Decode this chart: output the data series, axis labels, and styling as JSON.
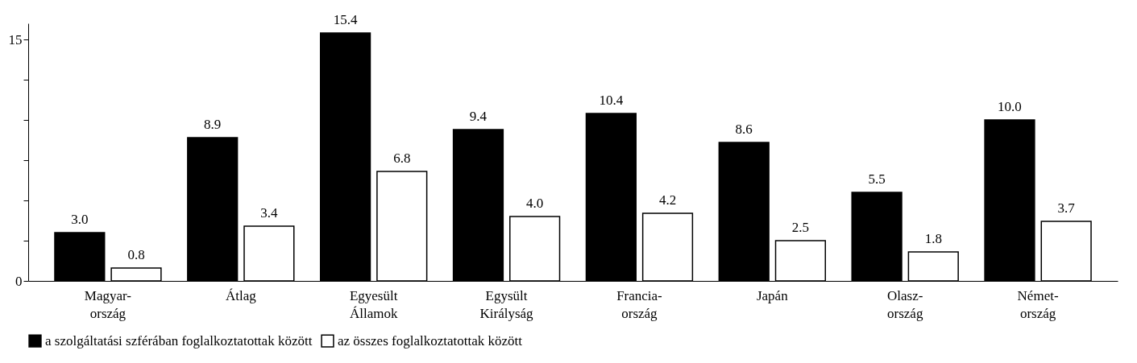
{
  "chart_data": {
    "type": "bar",
    "categories": [
      "Magyar-\nország",
      "Átlag",
      "Egyesült\nÁllamok",
      "Egysült\nKirályság",
      "Francia-\nország",
      "Japán",
      "Olasz-\nország",
      "Német-\nország"
    ],
    "series": [
      {
        "name": "a szolgáltatási szférában foglalkoztatottak között",
        "color": "#000000",
        "values": [
          3.0,
          8.9,
          15.4,
          9.4,
          10.4,
          8.6,
          5.5,
          10.0
        ],
        "value_labels": [
          "3.0",
          "8.9",
          "15.4",
          "9.4",
          "10.4",
          "8.6",
          "5.5",
          "10.0"
        ]
      },
      {
        "name": "az összes foglalkoztatottak között",
        "color": "#ffffff",
        "values": [
          0.8,
          3.4,
          6.8,
          4.0,
          4.2,
          2.5,
          1.8,
          3.7
        ],
        "value_labels": [
          "0.8",
          "3.4",
          "6.8",
          "4.0",
          "4.2",
          "2.5",
          "1.8",
          "3.7"
        ]
      }
    ],
    "ylim": [
      0,
      16
    ],
    "yticks": [
      0,
      {
        "value": 2.5,
        "label": null
      },
      {
        "value": 5,
        "label": null
      },
      {
        "value": 7.5,
        "label": null
      },
      {
        "value": 10,
        "label": null
      },
      {
        "value": 12.5,
        "label": null
      },
      15
    ],
    "legend": "bottom",
    "grid": false
  }
}
